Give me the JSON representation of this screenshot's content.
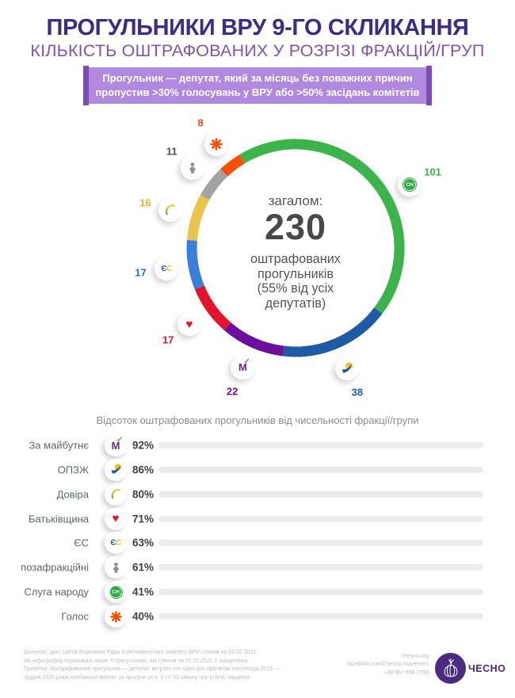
{
  "header": {
    "title": "ПРОГУЛЬНИКИ ВРУ 9-ГО СКЛИКАННЯ",
    "subtitle": "КІЛЬКІСТЬ ОШТРАФОВАНИХ У РОЗРІЗІ ФРАКЦІЙ/ГРУП",
    "definition_line1": "Прогульник — депутат, який за місяць без поважних причин",
    "definition_line2": "пропустив >30% голосувань у ВРУ або >50% засідань комітетів"
  },
  "chart_data": {
    "donut": {
      "type": "pie",
      "total": 230,
      "center_label": "загалом:",
      "center_value": "230",
      "center_sub_lines": [
        "оштрафованих",
        "прогульників",
        "(55% від усіх",
        "депутатів)"
      ],
      "start_angle_deg": -31,
      "slices": [
        {
          "party": "Слуга народу",
          "value": 101,
          "color": "#3cb44b",
          "label_color": "#3cb44b",
          "icon": "sluha-narodu-icon",
          "label_angle": 61
        },
        {
          "party": "ОПЗЖ",
          "value": 38,
          "color": "#1d5ca5",
          "label_color": "#1d5ca5",
          "icon": "opzh-bird-icon"
        },
        {
          "party": "За майбутнє",
          "value": 22,
          "color": "#6d0f9e",
          "label_color": "#6d0f9e",
          "icon": "za-maibutne-icon"
        },
        {
          "party": "Батьківщина",
          "value": 17,
          "color": "#e3132b",
          "label_color": "#e3132b",
          "icon": "heart-icon"
        },
        {
          "party": "ЄС",
          "value": 17,
          "color": "#3c7ede",
          "label_color": "#2f6fd0",
          "icon": "es-icon"
        },
        {
          "party": "Довіра",
          "value": 16,
          "color": "#e9c34d",
          "label_color": "#e2b33c",
          "icon": "dovira-crescent-icon"
        },
        {
          "party": "позафракційні",
          "value": 11,
          "color": "#a2a2a2",
          "label_color": "#4d4d4d",
          "icon": "person-icon"
        },
        {
          "party": "Голос",
          "value": 8,
          "color": "#fc4e00",
          "label_color": "#fc4e00",
          "icon": "holos-asterisk-icon"
        }
      ]
    },
    "bars": {
      "type": "bar",
      "title": "Відсоток оштрафованих прогульників від чисельності фракції/групи",
      "xlim": [
        0,
        100
      ],
      "unit": "%",
      "rows": [
        {
          "party": "За майбутнє",
          "pct": 92,
          "pct_label": "92%",
          "color": "#6d0f9e",
          "icon": "za-maibutne-icon"
        },
        {
          "party": "ОПЗЖ",
          "pct": 86,
          "pct_label": "86%",
          "color": "#1d5ca5",
          "icon": "opzh-bird-icon"
        },
        {
          "party": "Довіра",
          "pct": 80,
          "pct_label": "80%",
          "color": "#e9c34d",
          "icon": "dovira-crescent-icon"
        },
        {
          "party": "Батьківщина",
          "pct": 71,
          "pct_label": "71%",
          "color": "#e3132b",
          "icon": "heart-icon"
        },
        {
          "party": "ЄС",
          "pct": 63,
          "pct_label": "63%",
          "color": "#3c7ede",
          "icon": "es-icon"
        },
        {
          "party": "позафракційні",
          "pct": 61,
          "pct_label": "61%",
          "color": "#a2a2a2",
          "icon": "person-icon"
        },
        {
          "party": "Слуга народу",
          "pct": 41,
          "pct_label": "41%",
          "color": "#3cb44b",
          "icon": "sluha-narodu-icon"
        },
        {
          "party": "Голос",
          "pct": 40,
          "pct_label": "40%",
          "color": "#fc4e00",
          "icon": "holos-asterisk-icon"
        }
      ]
    }
  },
  "footer": {
    "notes": [
      "Джерело: дані сайтів Верховної Ради й регламентного комітету ВРУ станом на 02.02.2021.",
      "На інфографіці пораховані лише ті прогульники, які станом на 02.02.2021 є нардепами.",
      "Примітка: Оштрафований прогульник — депутат, котрого хоч один раз протягом листопада 2019 —",
      "грудня 2020 років позбавили виплат за прогули за ч. 5 ст. 33 закону про статус нардепа."
    ],
    "contacts": [
      "chesno.org",
      "facebook.com/chesno.movement",
      "+38 067 658 7798"
    ],
    "logo_text": "ЧЕСНО"
  },
  "colors": {
    "title": "#3e2b84",
    "subtitle": "#7d55ad",
    "definition_bg": "#b18ae0",
    "definition_edge": "#7d4bb5",
    "bar_track": "#ececec",
    "chesno_purple": "#4b2a82"
  }
}
